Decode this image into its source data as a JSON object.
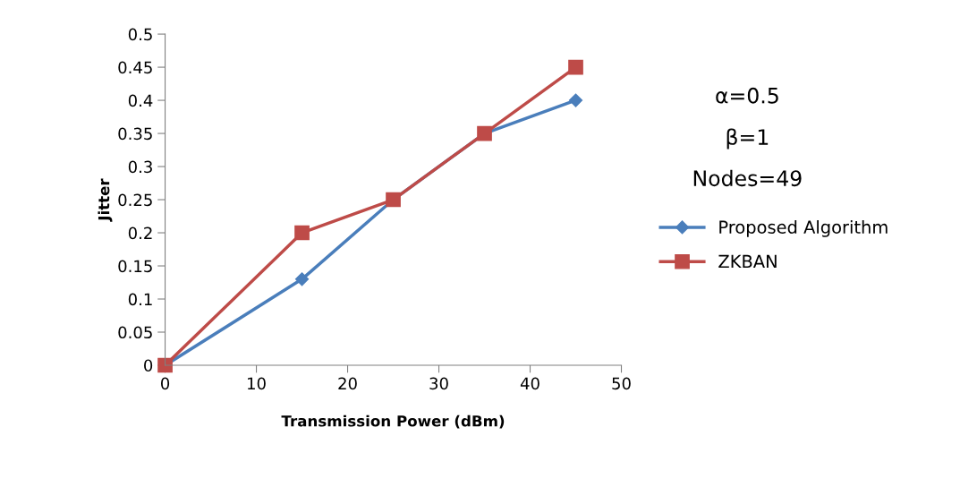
{
  "chart_data": {
    "type": "line",
    "xlabel": "Transmission Power (dBm)",
    "ylabel": "Jitter",
    "x": [
      0,
      15,
      25,
      35,
      45
    ],
    "series": [
      {
        "name": "Proposed Algorithm",
        "color": "#4a7ebb",
        "marker": "diamond",
        "values": [
          0,
          0.13,
          0.25,
          0.35,
          0.4
        ]
      },
      {
        "name": "ZKBAN",
        "color": "#be4b48",
        "marker": "square",
        "values": [
          0,
          0.2,
          0.25,
          0.35,
          0.45
        ]
      }
    ],
    "xlim": [
      0,
      50
    ],
    "xticks": [
      0,
      10,
      20,
      30,
      40,
      50
    ],
    "ylim": [
      0,
      0.5
    ],
    "yticks": [
      0,
      0.05,
      0.1,
      0.15,
      0.2,
      0.25,
      0.3,
      0.35,
      0.4,
      0.45,
      0.5
    ],
    "annotations": [
      "α=0.5",
      "β=1",
      "Nodes=49"
    ],
    "grid": false,
    "legend": "right",
    "line_style": "solid"
  }
}
